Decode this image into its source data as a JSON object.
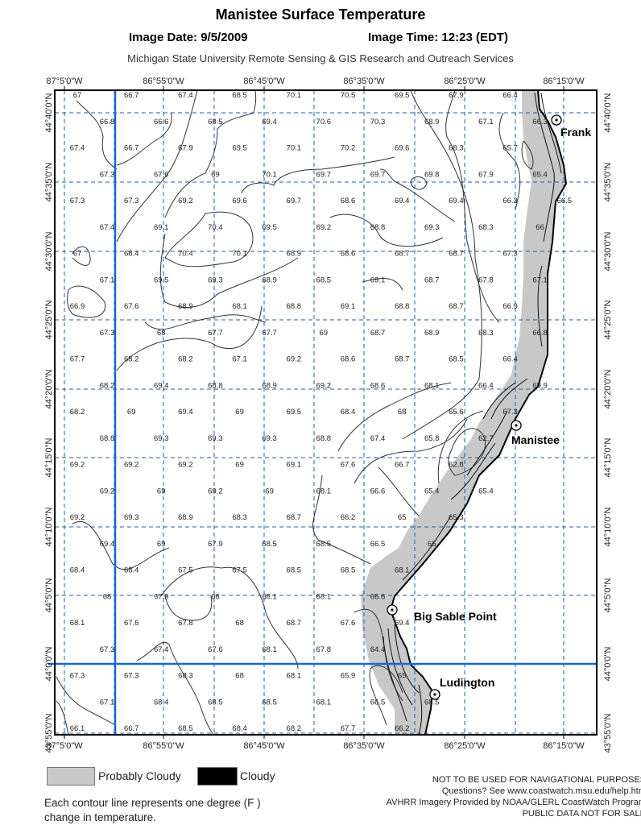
{
  "header": {
    "title": "Manistee Surface Temperature",
    "image_date": "Image Date: 9/5/2009",
    "image_time": "Image Time: 12:23 (EDT)",
    "subtitle": "Michigan State University Remote Sensing & GIS Research and Outreach Services"
  },
  "map": {
    "longitude_labels": [
      "87°5'0\"W",
      "86°55'0\"W",
      "86°45'0\"W",
      "86°35'0\"W",
      "86°25'0\"W",
      "86°15'0\"W"
    ],
    "latitude_labels": [
      "44°40'0\"N",
      "44°35'0\"N",
      "44°30'0\"N",
      "44°25'0\"N",
      "44°20'0\"N",
      "44°15'0\"N",
      "44°10'0\"N",
      "44°5'0\"N",
      "44°0'0\"N",
      "43°55'0\"N"
    ],
    "temperature_rows": [
      [
        67,
        66.7,
        67.4,
        68.5,
        70.1,
        70.5,
        69.5,
        67.9,
        66.4
      ],
      [
        66.8,
        66.6,
        68.5,
        69.4,
        70.6,
        70.3,
        68.9,
        67.1,
        66.3
      ],
      [
        67.4,
        66.7,
        67.9,
        69.5,
        70.1,
        70.2,
        69.6,
        68.3,
        65.7
      ],
      [
        67.3,
        67.6,
        69,
        70.1,
        69.7,
        69.7,
        69.8,
        67.9,
        65.4
      ],
      [
        67.3,
        67.3,
        69.2,
        69.6,
        69.7,
        68.6,
        69.4,
        69.4,
        66.3,
        66.5
      ],
      [
        67.4,
        69.1,
        70.4,
        69.5,
        69.2,
        68.8,
        69.3,
        68.3,
        66
      ],
      [
        67,
        68.4,
        70.4,
        70.1,
        68.9,
        68.6,
        68.7,
        68.7,
        67.3
      ],
      [
        67.1,
        69.5,
        69.3,
        68.9,
        68.5,
        69.1,
        68.7,
        67.8,
        67.1
      ],
      [
        66.9,
        67.6,
        68.9,
        68.1,
        68.8,
        69.1,
        68.8,
        68.7,
        66.9
      ],
      [
        67.3,
        68,
        67.7,
        67.7,
        69,
        68.7,
        68.9,
        68.3,
        66.8
      ],
      [
        67.7,
        68.2,
        68.2,
        67.1,
        69.2,
        68.6,
        68.7,
        68.5,
        66.4
      ],
      [
        68.2,
        69.4,
        68.8,
        68.9,
        69.2,
        68.6,
        68.1,
        66.4,
        69.9
      ],
      [
        68.2,
        69,
        69.4,
        69,
        69.5,
        68.4,
        68,
        65.6,
        67.3
      ],
      [
        68.8,
        69.3,
        69.3,
        69.3,
        68.8,
        67.4,
        65.8,
        62.7
      ],
      [
        69.2,
        69.2,
        69.2,
        69,
        69.1,
        67.6,
        66.7,
        62.8
      ],
      [
        69.2,
        69,
        69.2,
        69,
        68.1,
        66.6,
        65.4,
        65.4
      ],
      [
        69.2,
        69.3,
        68.9,
        68.3,
        68.7,
        66.2,
        65,
        65.3
      ],
      [
        69.4,
        69,
        67.9,
        68.5,
        68.5,
        66.5,
        65
      ],
      [
        68.4,
        68.4,
        67.5,
        67.5,
        68.5,
        68.5,
        68.1
      ],
      [
        68,
        67.9,
        68,
        68.1,
        68.1,
        66.6
      ],
      [
        68.1,
        67.6,
        67.8,
        68,
        68.7,
        67.6,
        69.4
      ],
      [
        67.3,
        67.4,
        67.6,
        68.1,
        67.8,
        64.4
      ],
      [
        67.3,
        67.3,
        68.3,
        68,
        68.1,
        65.9,
        65
      ],
      [
        67.1,
        68.4,
        68.5,
        68.5,
        68.1,
        66.5,
        68.5
      ],
      [
        66.1,
        66.7,
        68.5,
        68.4,
        68.2,
        67.7,
        66.2
      ]
    ],
    "places": [
      {
        "name": "Frank",
        "marker": "city-marker-icon"
      },
      {
        "name": "Manistee",
        "marker": "city-marker-icon"
      },
      {
        "name": "Big Sable Point",
        "marker": "city-marker-icon"
      },
      {
        "name": "Ludington",
        "marker": "city-marker-icon"
      }
    ],
    "colors": {
      "grid": "#1f5fa8",
      "highlight_line": "#1a66d6",
      "cloud_probable": "#c8c8c8",
      "cloud": "#000000",
      "land": "#ffffff"
    }
  },
  "legend": {
    "probably_cloudy": "Probably Cloudy",
    "cloudy": "Cloudy",
    "contour_note_1": "Each contour line represents one degree (F )",
    "contour_note_2": "change in temperature."
  },
  "disclaimer": {
    "line1": "NOT TO BE USED FOR NAVIGATIONAL PURPOSES",
    "line2": "Questions?  See www.coastwatch.msu.edu/help.htm",
    "line3": "AVHRR Imagery Provided by NOAA/GLERL CoastWatch Program",
    "line4": "PUBLIC DATA NOT FOR SALE"
  }
}
